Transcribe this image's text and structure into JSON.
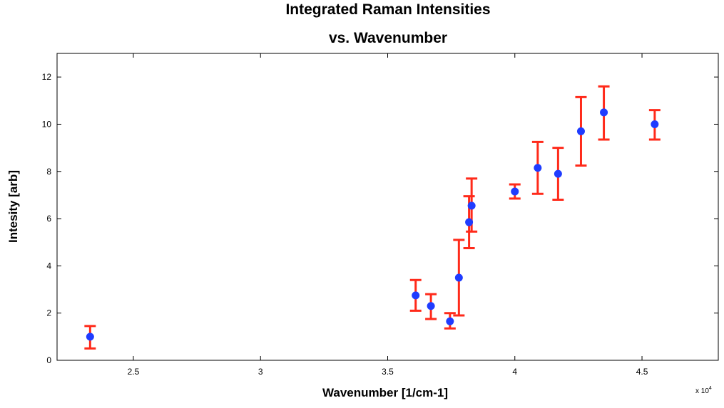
{
  "chart_data": {
    "type": "scatter",
    "title_line1": "Integrated Raman Intensities",
    "title_line2": "vs. Wavenumber",
    "xlabel": "Wavenumber [1/cm-1]",
    "ylabel": "Intesity [arb]",
    "x_multiplier_base": "x 10",
    "x_multiplier_exp": "4",
    "xlim": [
      2.2,
      4.8
    ],
    "ylim": [
      0,
      13
    ],
    "xticks": [
      2.5,
      3,
      3.5,
      4,
      4.5
    ],
    "xtick_labels": [
      "2.5",
      "3",
      "3.5",
      "4",
      "4.5"
    ],
    "yticks": [
      0,
      2,
      4,
      6,
      8,
      10,
      12
    ],
    "ytick_labels": [
      "0",
      "2",
      "4",
      "6",
      "8",
      "10",
      "12"
    ],
    "grid": false,
    "colors": {
      "point": "#1f3cff",
      "errorbar": "#ff2a1a",
      "axis": "#000000"
    },
    "series": [
      {
        "x": [
          2.33,
          3.61,
          3.67,
          3.745,
          3.78,
          3.82,
          3.83,
          4.0,
          4.09,
          4.17,
          4.26,
          4.35,
          4.55
        ],
        "y": [
          1.0,
          2.75,
          2.3,
          1.65,
          3.5,
          5.85,
          6.55,
          7.15,
          8.15,
          7.9,
          9.7,
          10.5,
          10.0
        ],
        "err_low": [
          0.5,
          2.1,
          1.75,
          1.35,
          1.9,
          4.75,
          5.45,
          6.85,
          7.05,
          6.8,
          8.25,
          9.35,
          9.35
        ],
        "err_high": [
          1.45,
          3.4,
          2.8,
          2.0,
          5.1,
          6.95,
          7.7,
          7.45,
          9.25,
          9.0,
          11.15,
          11.6,
          10.6
        ]
      }
    ]
  }
}
